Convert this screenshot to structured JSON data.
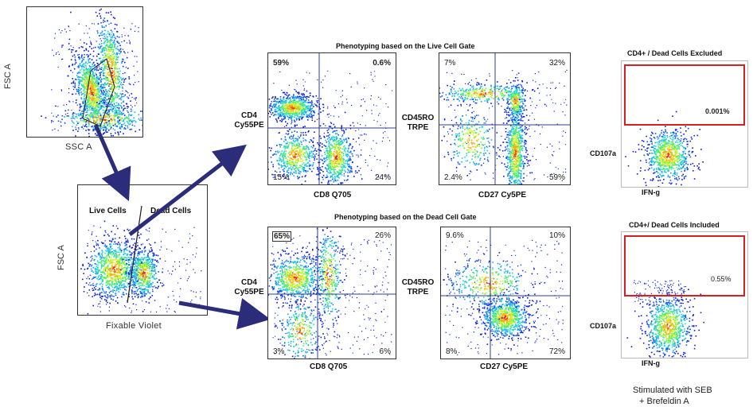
{
  "plot1": {
    "xlabel": "SSC  A",
    "ylabel": "FSC  A"
  },
  "plot2": {
    "xlabel": "Fixable  Violet",
    "ylabel": "FSC  A",
    "gate_live": "Live Cells",
    "gate_dead": "Dead Cells"
  },
  "live_title": "Phenotyping based on the Live Cell Gate",
  "dead_title": "Phenotyping based on the Dead Cell Gate",
  "live_cd4cd8": {
    "xlabel": "CD8 Q705",
    "ylabel_1": "CD4",
    "ylabel_2": "Cy55PE",
    "q_tl": "59%",
    "q_tr": "0.6%",
    "q_bl": "15%",
    "q_br": "24%"
  },
  "live_cd45": {
    "xlabel": "CD27 Cy5PE",
    "ylabel_1": "CD45RO",
    "ylabel_2": "TRPE",
    "q_tl": "7%",
    "q_tr": "32%",
    "q_bl": "2.4%",
    "q_br": "59%"
  },
  "dead_cd4cd8": {
    "xlabel": "CD8 Q705",
    "ylabel_1": "CD4",
    "ylabel_2": "Cy55PE",
    "q_tl": "65%",
    "q_tr": "26%",
    "q_bl": "3%",
    "q_br": "6%"
  },
  "dead_cd45": {
    "xlabel": "CD27 Cy5PE",
    "ylabel_1": "CD45RO",
    "ylabel_2": "TRPE",
    "q_tl": "9.6%",
    "q_tr": "10%",
    "q_bl": "8%",
    "q_br": "72%"
  },
  "excluded": {
    "title": "CD4+ / Dead Cells Excluded",
    "gate_value": "0.001%",
    "ylabel": "CD107a",
    "xlabel": "IFN-g"
  },
  "included": {
    "title": "CD4+/ Dead Cells Included",
    "gate_value": "0.55%",
    "ylabel": "CD107a",
    "xlabel": "IFN-g"
  },
  "footnote": {
    "line1": "Stimulated with  SEB",
    "line2": "+ Brefeldin  A"
  },
  "colors": {
    "arrow": "#2b2d7a",
    "gate_line": "#1a1a1a",
    "quadrant_line": "#2f3f8f",
    "red_gate": "#d42020",
    "density_low": "#0b1fd6",
    "density_high": "#e8261a"
  }
}
